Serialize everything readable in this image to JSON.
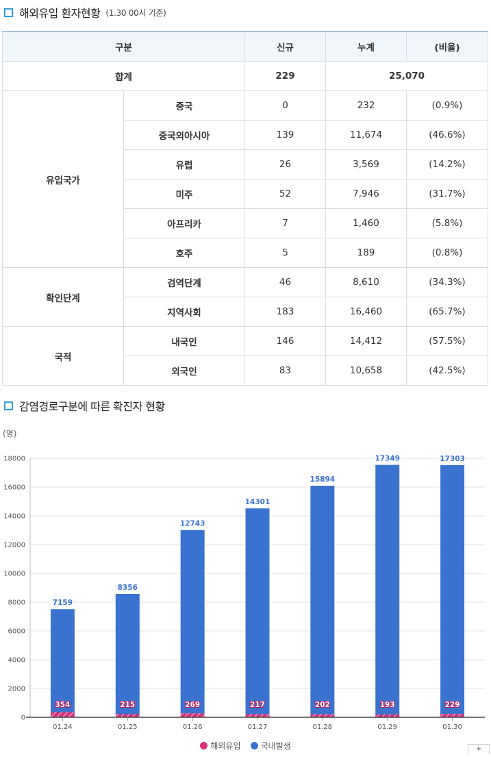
{
  "section1": {
    "title": "해외유입 환자현황",
    "subtitle": "(1.30 00시 기준)"
  },
  "table": {
    "headers": [
      "구분",
      "신규",
      "누계",
      "(비율)"
    ],
    "total": {
      "label": "합계",
      "new": "229",
      "cumulative": "25,070"
    },
    "groups": [
      {
        "name": "유입국가",
        "rows": [
          {
            "category": "중국",
            "new": "0",
            "cumulative": "232",
            "ratio": "(0.9%)"
          },
          {
            "category": "중국외아시아",
            "new": "139",
            "cumulative": "11,674",
            "ratio": "(46.6%)"
          },
          {
            "category": "유럽",
            "new": "26",
            "cumulative": "3,569",
            "ratio": "(14.2%)"
          },
          {
            "category": "미주",
            "new": "52",
            "cumulative": "7,946",
            "ratio": "(31.7%)"
          },
          {
            "category": "아프리카",
            "new": "7",
            "cumulative": "1,460",
            "ratio": "(5.8%)"
          },
          {
            "category": "호주",
            "new": "5",
            "cumulative": "189",
            "ratio": "(0.8%)"
          }
        ]
      },
      {
        "name": "확인단계",
        "rows": [
          {
            "category": "검역단계",
            "new": "46",
            "cumulative": "8,610",
            "ratio": "(34.3%)"
          },
          {
            "category": "지역사회",
            "new": "183",
            "cumulative": "16,460",
            "ratio": "(65.7%)"
          }
        ]
      },
      {
        "name": "국적",
        "rows": [
          {
            "category": "내국인",
            "new": "146",
            "cumulative": "14,412",
            "ratio": "(57.5%)"
          },
          {
            "category": "외국인",
            "new": "83",
            "cumulative": "10,658",
            "ratio": "(42.5%)"
          }
        ]
      }
    ]
  },
  "section2": {
    "title": "감염경로구분에 따른 확진자 현황"
  },
  "chart_data": {
    "type": "bar",
    "stacked": true,
    "unit_label": "(명)",
    "categories": [
      "01.24",
      "01.25",
      "01.26",
      "01.27",
      "01.28",
      "01.29",
      "01.30"
    ],
    "ylim": [
      0,
      18000
    ],
    "yticks": [
      0,
      2000,
      4000,
      6000,
      8000,
      10000,
      12000,
      14000,
      16000,
      18000
    ],
    "grid": true,
    "legend_position": "bottom-center",
    "series": [
      {
        "name": "해외유입",
        "color": "#d6307a",
        "values": [
          354,
          215,
          269,
          217,
          202,
          193,
          229
        ]
      },
      {
        "name": "국내발생",
        "color": "#3a73cf",
        "values": [
          7159,
          8356,
          12743,
          14301,
          15894,
          17349,
          17303
        ]
      }
    ]
  },
  "corner_button": "+"
}
